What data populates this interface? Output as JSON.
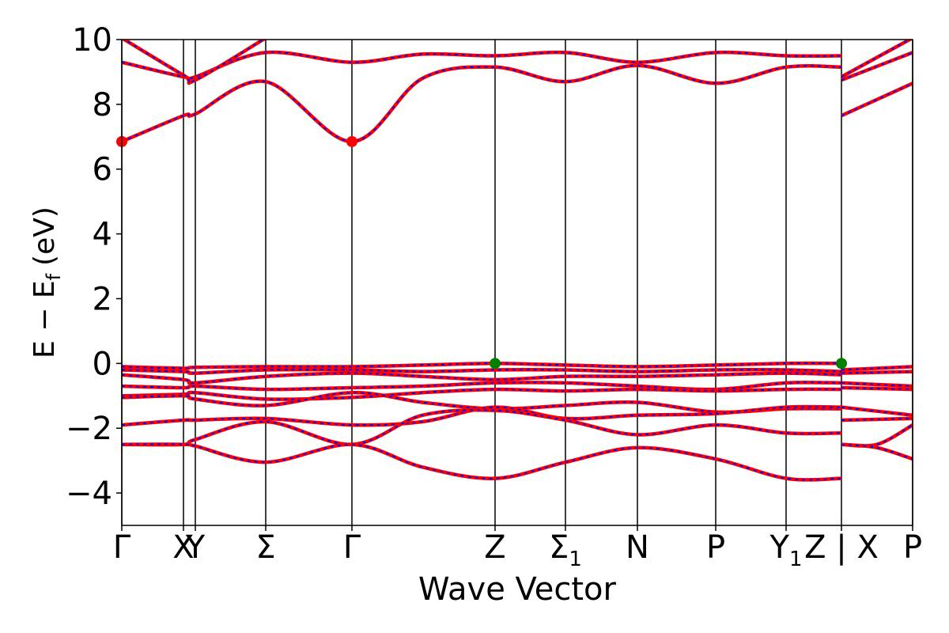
{
  "chart_data": {
    "type": "line",
    "title": "",
    "xlabel": "Wave Vector",
    "ylabel_main": "E − E",
    "ylabel_sub": "f",
    "ylabel_unit": "(eV)",
    "ylim": [
      -5,
      10
    ],
    "yticks": [
      -4,
      -2,
      0,
      2,
      4,
      6,
      8,
      10
    ],
    "ytick_labels": [
      "−4",
      "−2",
      "0",
      "2",
      "4",
      "6",
      "8",
      "10"
    ],
    "xlim": [
      0,
      1
    ],
    "kpoints": [
      {
        "label": "Γ",
        "x": 0.0,
        "sub": ""
      },
      {
        "label": "X",
        "x": 0.078,
        "sub": ""
      },
      {
        "label": "Y",
        "x": 0.093,
        "sub": ""
      },
      {
        "label": "Σ",
        "x": 0.182,
        "sub": ""
      },
      {
        "label": "Γ",
        "x": 0.291,
        "sub": ""
      },
      {
        "label": "Z",
        "x": 0.472,
        "sub": ""
      },
      {
        "label": "Σ",
        "x": 0.561,
        "sub": "1"
      },
      {
        "label": "N",
        "x": 0.652,
        "sub": ""
      },
      {
        "label": "P",
        "x": 0.751,
        "sub": ""
      },
      {
        "label": "Y",
        "x": 0.84,
        "sub": "1"
      },
      {
        "label": "Z | X",
        "x": 0.91,
        "sub": ""
      },
      {
        "label": "P",
        "x": 1.0,
        "sub": ""
      }
    ],
    "series_style": {
      "main_color": "#ff0000",
      "dash_color": "#0000ff"
    },
    "series": [
      {
        "x": [
          0,
          0.078,
          0.093,
          0.182,
          0.291,
          0.38,
          0.472,
          0.561,
          0.652,
          0.751,
          0.84,
          0.91
        ],
        "y": [
          -0.1,
          -0.15,
          -0.12,
          -0.1,
          -0.1,
          -0.05,
          0.0,
          -0.05,
          -0.1,
          -0.05,
          0.0,
          0.0
        ]
      },
      {
        "x": [
          0,
          0.078,
          0.093,
          0.182,
          0.291,
          0.38,
          0.472,
          0.561,
          0.652,
          0.751,
          0.84,
          0.91
        ],
        "y": [
          -0.2,
          -0.25,
          -0.3,
          -0.2,
          -0.2,
          -0.25,
          -0.2,
          -0.2,
          -0.25,
          -0.2,
          -0.2,
          -0.25
        ]
      },
      {
        "x": [
          0,
          0.078,
          0.093,
          0.182,
          0.291,
          0.38,
          0.472,
          0.561,
          0.652,
          0.751,
          0.84,
          0.91
        ],
        "y": [
          -0.35,
          -0.5,
          -0.6,
          -0.4,
          -0.3,
          -0.4,
          -0.5,
          -0.4,
          -0.4,
          -0.35,
          -0.3,
          -0.35
        ]
      },
      {
        "x": [
          0,
          0.078,
          0.093,
          0.182,
          0.291,
          0.38,
          0.472,
          0.561,
          0.652,
          0.751,
          0.84,
          0.91
        ],
        "y": [
          -0.7,
          -0.75,
          -0.7,
          -0.8,
          -0.75,
          -0.7,
          -0.6,
          -0.6,
          -0.7,
          -0.8,
          -0.6,
          -0.6
        ]
      },
      {
        "x": [
          0,
          0.078,
          0.093,
          0.182,
          0.291,
          0.38,
          0.472,
          0.561,
          0.652,
          0.751,
          0.84,
          0.91
        ],
        "y": [
          -1.0,
          -0.95,
          -0.9,
          -1.1,
          -1.05,
          -0.9,
          -0.8,
          -0.85,
          -0.8,
          -0.85,
          -0.8,
          -0.8
        ]
      },
      {
        "x": [
          0,
          0.078,
          0.093,
          0.182,
          0.291,
          0.38,
          0.472,
          0.561,
          0.652,
          0.751,
          0.84,
          0.91
        ],
        "y": [
          -1.05,
          -1.0,
          -1.1,
          -1.3,
          -0.9,
          -1.2,
          -1.4,
          -1.3,
          -1.2,
          -1.5,
          -1.4,
          -1.4
        ]
      },
      {
        "x": [
          0,
          0.078,
          0.093,
          0.182,
          0.291,
          0.38,
          0.472,
          0.561,
          0.652,
          0.751,
          0.84,
          0.91
        ],
        "y": [
          -1.9,
          -1.75,
          -1.75,
          -1.7,
          -1.9,
          -1.8,
          -1.35,
          -1.7,
          -1.6,
          -1.55,
          -1.35,
          -1.35
        ]
      },
      {
        "x": [
          0,
          0.078,
          0.093,
          0.182,
          0.291,
          0.38,
          0.472,
          0.561,
          0.652,
          0.751,
          0.84,
          0.91
        ],
        "y": [
          -2.5,
          -2.5,
          -2.35,
          -1.8,
          -2.5,
          -1.6,
          -1.45,
          -1.75,
          -2.2,
          -1.9,
          -2.15,
          -2.15
        ]
      },
      {
        "x": [
          0,
          0.078,
          0.093,
          0.182,
          0.291,
          0.38,
          0.472,
          0.561,
          0.652,
          0.751,
          0.84,
          0.91
        ],
        "y": [
          -2.5,
          -2.5,
          -2.55,
          -3.05,
          -2.5,
          -3.2,
          -3.55,
          -3.05,
          -2.6,
          -2.95,
          -3.55,
          -3.55
        ]
      },
      {
        "x": [
          0,
          0.078,
          0.093,
          0.182,
          0.291,
          0.38,
          0.472,
          0.561,
          0.652,
          0.751,
          0.84,
          0.91
        ],
        "y": [
          6.85,
          7.65,
          7.7,
          8.7,
          6.85,
          8.8,
          9.15,
          8.7,
          9.2,
          8.65,
          9.15,
          9.15
        ]
      },
      {
        "x": [
          0,
          0.078,
          0.093,
          0.182,
          0.291,
          0.38,
          0.472,
          0.561,
          0.652,
          0.751,
          0.84,
          0.91
        ],
        "y": [
          9.3,
          8.85,
          8.85,
          9.6,
          9.3,
          9.55,
          9.5,
          9.6,
          9.3,
          9.6,
          9.5,
          9.5
        ]
      },
      {
        "x": [
          0,
          0.078,
          0.093,
          0.182
        ],
        "y": [
          10.05,
          8.9,
          8.75,
          10.05
        ]
      },
      {
        "x": [
          0.91,
          1.0
        ],
        "y": [
          -0.2,
          -0.1
        ]
      },
      {
        "x": [
          0.91,
          1.0
        ],
        "y": [
          -0.3,
          -0.25
        ]
      },
      {
        "x": [
          0.91,
          1.0
        ],
        "y": [
          -0.6,
          -0.7
        ]
      },
      {
        "x": [
          0.91,
          1.0
        ],
        "y": [
          -0.75,
          -0.8
        ]
      },
      {
        "x": [
          0.91,
          1.0
        ],
        "y": [
          -1.35,
          -1.6
        ]
      },
      {
        "x": [
          0.91,
          1.0
        ],
        "y": [
          -1.75,
          -1.7
        ]
      },
      {
        "x": [
          0.91,
          0.955,
          1.0
        ],
        "y": [
          -2.5,
          -2.5,
          -1.9
        ]
      },
      {
        "x": [
          0.91,
          0.955,
          1.0
        ],
        "y": [
          -2.5,
          -2.6,
          -2.95
        ]
      },
      {
        "x": [
          0.91,
          1.0
        ],
        "y": [
          7.65,
          8.65
        ]
      },
      {
        "x": [
          0.91,
          1.0
        ],
        "y": [
          8.75,
          9.6
        ]
      },
      {
        "x": [
          0.91,
          1.0
        ],
        "y": [
          8.85,
          10.05
        ]
      }
    ],
    "markers": [
      {
        "x": 0.0,
        "y": 6.85,
        "color": "#ff0000",
        "kind": "cbm"
      },
      {
        "x": 0.291,
        "y": 6.85,
        "color": "#ff0000",
        "kind": "cbm"
      },
      {
        "x": 0.472,
        "y": 0.0,
        "color": "#008000",
        "kind": "vbm"
      },
      {
        "x": 0.91,
        "y": 0.0,
        "color": "#008000",
        "kind": "vbm"
      }
    ]
  }
}
